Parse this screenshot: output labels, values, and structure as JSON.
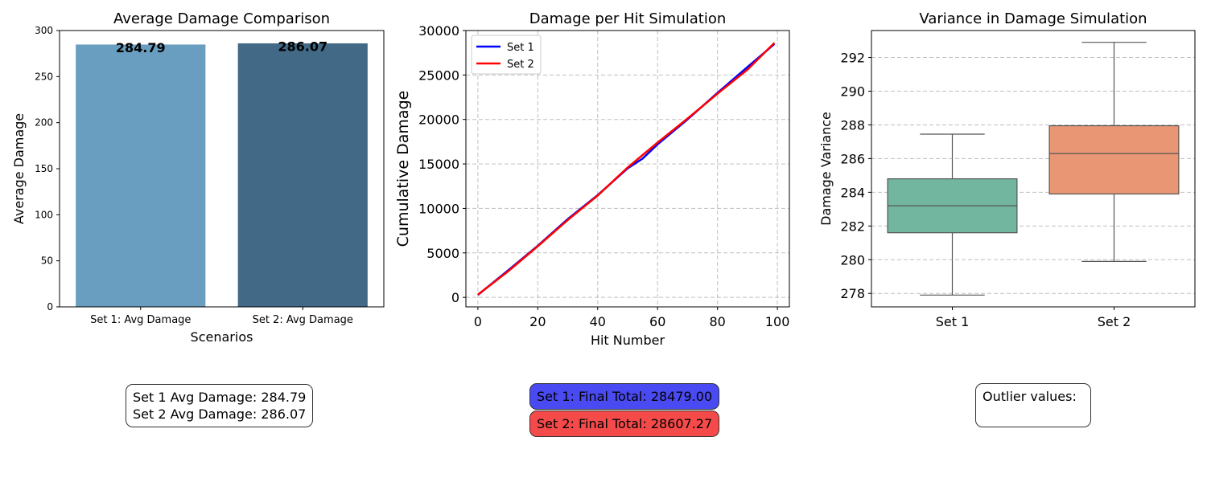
{
  "chart_data": [
    {
      "type": "bar",
      "title": "Average Damage Comparison",
      "xlabel": "Scenarios",
      "ylabel": "Average Damage",
      "categories": [
        "Set 1: Avg Damage",
        "Set 2: Avg Damage"
      ],
      "values": [
        284.79,
        286.07
      ],
      "value_labels": [
        "284.79",
        "286.07"
      ],
      "colors": [
        "#6a9ec0",
        "#426986"
      ],
      "ylim": [
        0,
        300
      ],
      "yticks": [
        0,
        50,
        100,
        150,
        200,
        250,
        300
      ],
      "ytick_labels": [
        "0",
        "50",
        "100",
        "150",
        "200",
        "250",
        "300"
      ],
      "grid": false
    },
    {
      "type": "line",
      "title": "Damage per Hit Simulation",
      "xlabel": "Hit Number",
      "ylabel": "Cumulative Damage",
      "x": [
        0,
        10,
        20,
        30,
        40,
        50,
        55,
        60,
        70,
        80,
        90,
        99
      ],
      "series": [
        {
          "name": "Set 1",
          "color": "#0000ff",
          "values": [
            280,
            3000,
            5800,
            8800,
            11500,
            14500,
            15600,
            17200,
            20000,
            23000,
            25900,
            28479
          ]
        },
        {
          "name": "Set 2",
          "color": "#ff0000",
          "values": [
            300,
            2900,
            5750,
            8700,
            11450,
            14600,
            16000,
            17400,
            20100,
            22900,
            25600,
            28607.27
          ]
        }
      ],
      "xlim": [
        -4,
        104
      ],
      "ylim": [
        -1070,
        30000
      ],
      "xticks": [
        0,
        20,
        40,
        60,
        80,
        100
      ],
      "xtick_labels": [
        "0",
        "20",
        "40",
        "60",
        "80",
        "100"
      ],
      "yticks": [
        0,
        5000,
        10000,
        15000,
        20000,
        25000,
        30000
      ],
      "ytick_labels": [
        "0",
        "5000",
        "10000",
        "15000",
        "20000",
        "25000",
        "30000"
      ],
      "legend_position": "top-left",
      "grid": true
    },
    {
      "type": "box",
      "title": "Variance in Damage Simulation",
      "xlabel": "",
      "ylabel": "Damage Variance",
      "categories": [
        "Set 1",
        "Set 2"
      ],
      "boxes": [
        {
          "name": "Set 1",
          "whisker_low": 277.9,
          "q1": 281.6,
          "median": 283.2,
          "q3": 284.8,
          "whisker_high": 287.45,
          "color": "#72b6a0"
        },
        {
          "name": "Set 2",
          "whisker_low": 279.9,
          "q1": 283.9,
          "median": 286.3,
          "q3": 287.95,
          "whisker_high": 292.9,
          "color": "#e99675"
        }
      ],
      "ylim": [
        277.2,
        293.6
      ],
      "yticks": [
        278,
        280,
        282,
        284,
        286,
        288,
        290,
        292
      ],
      "ytick_labels": [
        "278",
        "280",
        "282",
        "284",
        "286",
        "288",
        "290",
        "292"
      ],
      "grid": true
    }
  ],
  "annotations": {
    "avg_line1": "Set 1 Avg Damage: 284.79",
    "avg_line2": "Set 2 Avg Damage: 286.07",
    "final1": "Set 1: Final Total: 28479.00",
    "final2": "Set 2: Final Total: 28607.27",
    "outlier": "Outlier values:"
  }
}
